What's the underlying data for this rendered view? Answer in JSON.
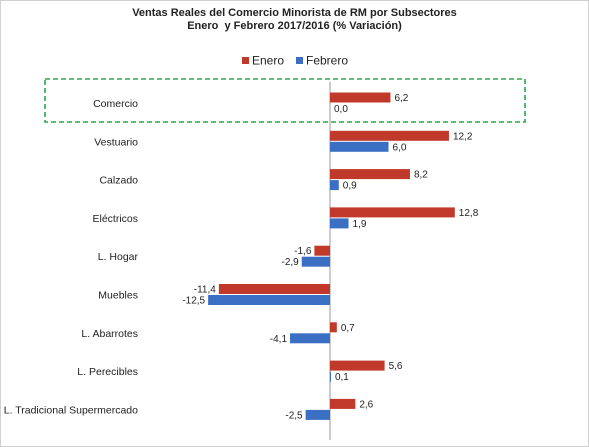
{
  "chart_data": {
    "type": "bar",
    "orientation": "horizontal",
    "title": "Ventas Reales del Comercio Minorista de RM por Subsectores",
    "subtitle": "Enero  y Febrero 2017/2016 (% Variación)",
    "categories": [
      "Comercio",
      "Vestuario",
      "Calzado",
      "Eléctricos",
      "L. Hogar",
      "Muebles",
      "L. Abarrotes",
      "L. Perecibles",
      "L. Tradicional Supermercado"
    ],
    "value_labels": {
      "Enero": [
        "6,2",
        "12,2",
        "8,2",
        "12,8",
        "-1,6",
        "-11,4",
        "0,7",
        "5,6",
        "2,6"
      ],
      "Febrero": [
        "0,0",
        "6,0",
        "0,9",
        "1,9",
        "-2,9",
        "-12,5",
        "-4,1",
        "0,1",
        "-2,5"
      ]
    },
    "series": [
      {
        "name": "Enero",
        "color": "#c0392b",
        "values": [
          6.2,
          12.2,
          8.2,
          12.8,
          -1.6,
          -11.4,
          0.7,
          5.6,
          2.6
        ]
      },
      {
        "name": "Febrero",
        "color": "#3a6fc4",
        "values": [
          0.0,
          6.0,
          0.9,
          1.9,
          -2.9,
          -12.5,
          -4.1,
          0.1,
          -2.5
        ]
      }
    ],
    "legend": {
      "position": "top"
    },
    "highlight": {
      "category": "Comercio",
      "style": "dashed-box",
      "color": "#2aa84a"
    },
    "grid": false
  }
}
